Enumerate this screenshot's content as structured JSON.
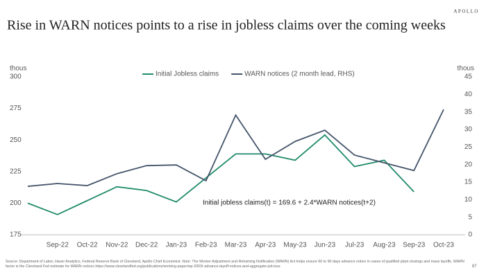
{
  "brand": "APOLLO",
  "page_number": "87",
  "source": "Source: Department of Labor, Haver Analytics, Federal Reserve Bank of Cleveland, Apollo Chief Economist. Note: The Worker Adjustment and Retraining Notification (WARN) Act helps ensure 60 to 90 days advance notice in cases of qualified plant closings and mass layoffs. WARN factor is the Cleveland Fed estimate for WARN notices https://www.clevelandfed.org/publications/working-paper/wp-2003r-advance-layoff-notices-and-aggregate-job-loss",
  "chart_data": {
    "type": "line",
    "title": "Rise in WARN notices points to a rise in jobless claims over the coming weeks",
    "ylabel": "thous",
    "y2label": "thous",
    "annotation": "Initial jobless claims(t) = 169.6 + 2.4*WARN notices(t+2)",
    "categories": [
      null,
      "Sep-22",
      "Oct-22",
      "Nov-22",
      "Dec-22",
      "Jan-23",
      "Feb-23",
      "Mar-23",
      "Apr-23",
      "May-23",
      "Jun-23",
      "Jul-23",
      "Aug-23",
      "Sep-23",
      "Oct-23"
    ],
    "series": [
      {
        "name": "Initial Jobless claims",
        "color": "#1f8a6a",
        "values": [
          200,
          191,
          202,
          213,
          210,
          201,
          220,
          239,
          239,
          234,
          254,
          229,
          234,
          209,
          null
        ]
      },
      {
        "name": "WARN notices (2 month lead, RHS)",
        "color": "#44546a",
        "axis": "y2",
        "values": [
          13.8,
          14.6,
          14,
          17.4,
          19.7,
          19.9,
          15.4,
          34.1,
          21.5,
          26.6,
          29.8,
          22.7,
          20.5,
          18.3,
          35.7
        ]
      }
    ],
    "ylim": [
      175,
      300
    ],
    "yticks": [
      175,
      200,
      225,
      250,
      275,
      300
    ],
    "y2lim": [
      0,
      45
    ],
    "y2ticks": [
      0,
      5,
      10,
      15,
      20,
      25,
      30,
      35,
      40,
      45
    ],
    "legend": "top"
  }
}
